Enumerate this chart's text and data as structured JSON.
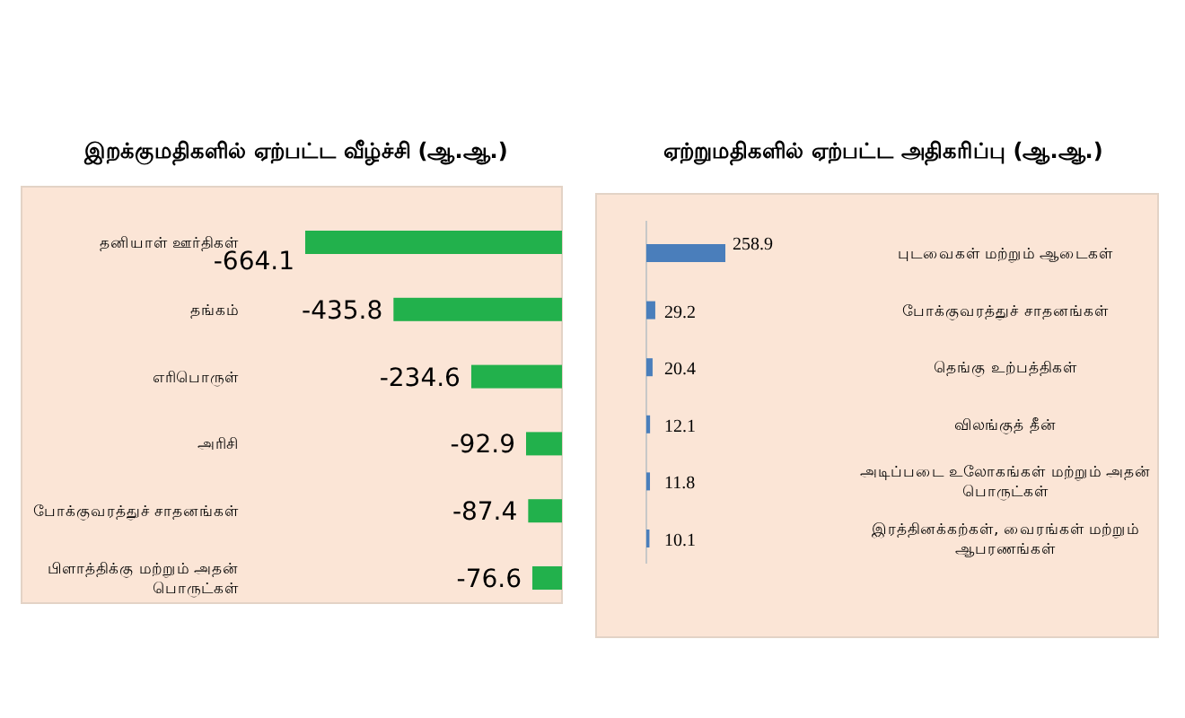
{
  "chart_data": [
    {
      "type": "bar",
      "orientation": "horizontal",
      "title": "இறக்குமதிகளில் ஏற்பட்ட வீழ்ச்சி (ஆ.ஆ.)",
      "categories": [
        "தனியாள் ஊர்திகள்",
        "தங்கம்",
        "எரிபொருள்",
        "அரிசி",
        "போக்குவரத்துச் சாதனங்கள்",
        "பிளாத்திக்கு மற்றும் அதன் பொருட்கள்"
      ],
      "values": [
        -664.1,
        -435.8,
        -234.6,
        -92.9,
        -87.4,
        -76.6
      ],
      "color": "#22b14c",
      "data_labels": true
    },
    {
      "type": "bar",
      "orientation": "horizontal",
      "title": "ஏற்றுமதிகளில் ஏற்பட்ட அதிகரிப்பு (ஆ.ஆ.)",
      "categories": [
        "புடவைகள் மற்றும் ஆடைகள்",
        "போக்குவரத்துச் சாதனங்கள்",
        "தெங்கு உற்பத்திகள்",
        "விலங்குத் தீன்",
        "அடிப்படை உலோகங்கள் மற்றும் அதன் பொருட்கள்",
        "இரத்தினக்கற்கள், வைரங்கள் மற்றும் ஆபரணங்கள்"
      ],
      "values": [
        258.9,
        29.2,
        20.4,
        12.1,
        11.8,
        10.1
      ],
      "color": "#4a7ebb",
      "data_labels": true
    }
  ]
}
